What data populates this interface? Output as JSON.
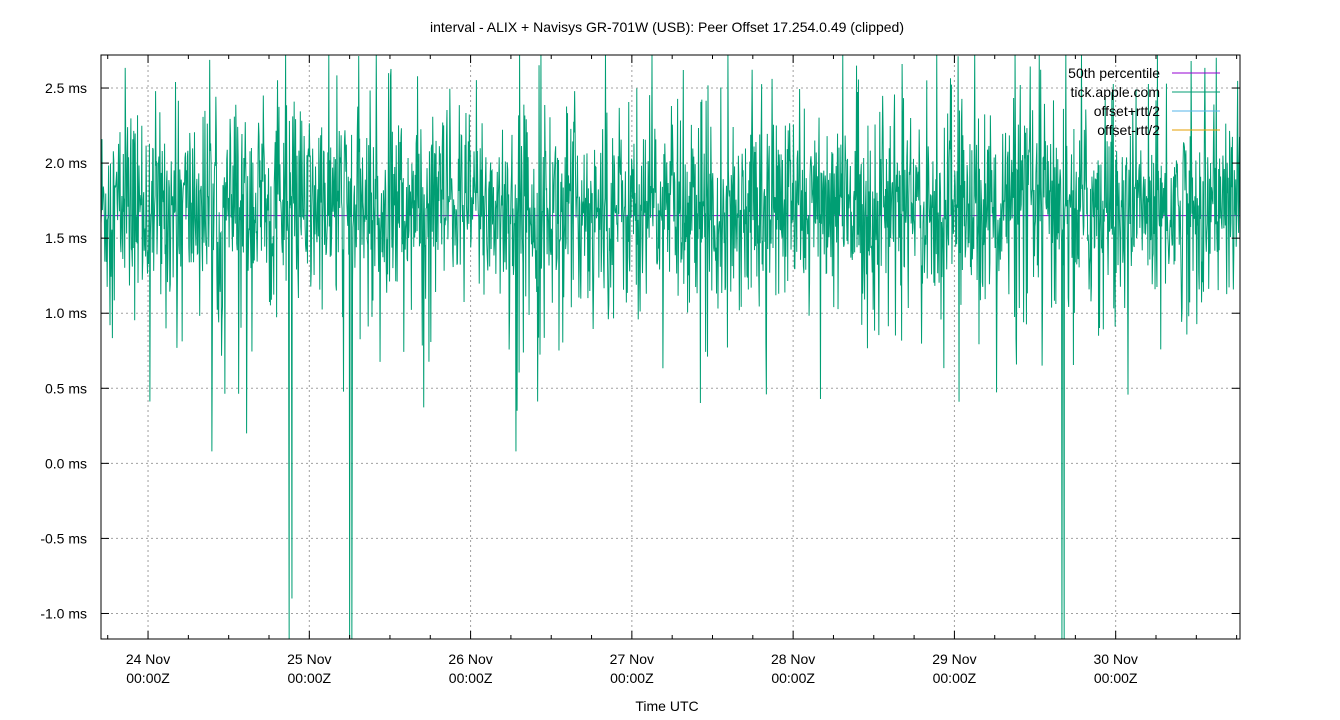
{
  "chart_data": {
    "type": "line",
    "title": "interval - ALIX + Navisys GR-701W (USB): Peer Offset 17.254.0.49 (clipped)",
    "xlabel": "Time UTC",
    "ylabel": "",
    "xlim": [
      "2021-11-23 17:00Z",
      "2021-11-30 18:30Z"
    ],
    "ylim": [
      -1.17,
      2.72
    ],
    "y_unit": "ms",
    "y_ticks": [
      {
        "value": 2.5,
        "label": "2.5 ms"
      },
      {
        "value": 2.0,
        "label": "2.0 ms"
      },
      {
        "value": 1.5,
        "label": "1.5 ms"
      },
      {
        "value": 1.0,
        "label": "1.0 ms"
      },
      {
        "value": 0.5,
        "label": "0.5 ms"
      },
      {
        "value": 0.0,
        "label": "0.0 ms"
      },
      {
        "value": -0.5,
        "label": "-0.5 ms"
      },
      {
        "value": -1.0,
        "label": "-1.0 ms"
      }
    ],
    "x_ticks": [
      {
        "value": "2021-11-24 00:00Z",
        "line1": "24 Nov",
        "line2": "00:00Z"
      },
      {
        "value": "2021-11-25 00:00Z",
        "line1": "25 Nov",
        "line2": "00:00Z"
      },
      {
        "value": "2021-11-26 00:00Z",
        "line1": "26 Nov",
        "line2": "00:00Z"
      },
      {
        "value": "2021-11-27 00:00Z",
        "line1": "27 Nov",
        "line2": "00:00Z"
      },
      {
        "value": "2021-11-28 00:00Z",
        "line1": "28 Nov",
        "line2": "00:00Z"
      },
      {
        "value": "2021-11-29 00:00Z",
        "line1": "29 Nov",
        "line2": "00:00Z"
      },
      {
        "value": "2021-11-30 00:00Z",
        "line1": "30 Nov",
        "line2": "00:00Z"
      }
    ],
    "grid": true,
    "legend_position": "top-right",
    "series": [
      {
        "name": "50th percentile",
        "color": "#9400d3",
        "kind": "constant",
        "value": 1.65
      },
      {
        "name": "tick.apple.com",
        "color": "#009e73",
        "kind": "noise",
        "typical_range": [
          0.9,
          2.6
        ],
        "center": 1.7,
        "dips": [
          {
            "time": "2021-11-24 21:00Z",
            "value": -1.17
          },
          {
            "time": "2021-11-24 21:25Z",
            "value": -0.9
          },
          {
            "time": "2021-11-25 06:00Z",
            "value": -1.17
          },
          {
            "time": "2021-11-25 06:20Z",
            "value": -1.17
          },
          {
            "time": "2021-11-26 06:45Z",
            "value": 0.08
          },
          {
            "time": "2021-11-26 06:55Z",
            "value": 0.35
          },
          {
            "time": "2021-11-29 16:00Z",
            "value": -1.17
          },
          {
            "time": "2021-11-29 16:20Z",
            "value": -1.17
          },
          {
            "time": "2021-11-24 09:30Z",
            "value": 0.08
          },
          {
            "time": "2021-11-24 14:40Z",
            "value": 0.2
          }
        ]
      },
      {
        "name": "offset+rtt/2",
        "color": "#56b4e9",
        "kind": "none"
      },
      {
        "name": "offset-rtt/2",
        "color": "#e69f00",
        "kind": "none"
      }
    ]
  }
}
